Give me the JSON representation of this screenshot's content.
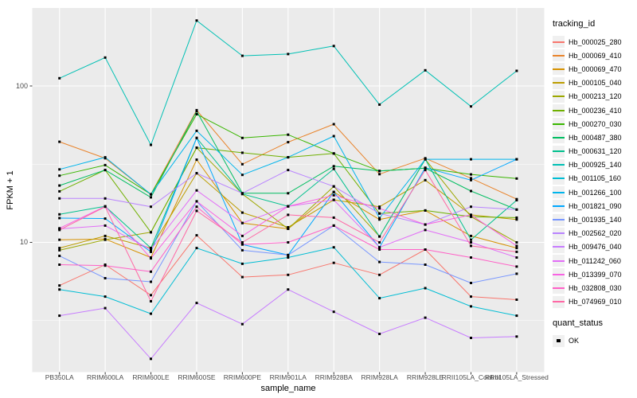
{
  "figure": {
    "y_axis": {
      "label": "FPKM + 1",
      "tick_labels": [
        "100",
        "10"
      ],
      "tick_values": [
        100,
        10
      ]
    },
    "x_axis": {
      "label": "sample_name"
    },
    "legend": {
      "tracking_title": "tracking_id",
      "quant_title": "quant_status",
      "quant_items": [
        {
          "label": "OK",
          "marker": "black-square"
        }
      ]
    },
    "colors": {
      "panel_bg": "#EBEBEB",
      "grid": "#FFFFFF",
      "axis_text": "#4D4D4D",
      "tick_mark": "#333333",
      "point": "#000000",
      "legend_key_bg": "#F0F0F0"
    }
  },
  "chart_data": {
    "type": "line",
    "title": "",
    "xlabel": "sample_name",
    "ylabel": "FPKM + 1",
    "y_scale": "log10",
    "ylim": [
      1.45,
      320
    ],
    "y_major_ticks": [
      10,
      100
    ],
    "y_minor_ticks": [
      3.162,
      31.62,
      316.2
    ],
    "grid": true,
    "legend_position": "right",
    "marker": "black-square",
    "x": [
      "PB350LA",
      "RRIM600LA",
      "RRIM600LE",
      "RRIM600SE",
      "RRIM600PE",
      "RRIM901LA",
      "RRIM928BA",
      "RRIM928LA",
      "RRIM928LE",
      "RRII105LA_Control",
      "RRII105LA_Stressed"
    ],
    "series": [
      {
        "name": "Hb_000025_280",
        "color": "#F8766D",
        "values": [
          5.3,
          7.2,
          4.6,
          11.1,
          6.0,
          6.2,
          7.4,
          6.2,
          9.0,
          4.5,
          4.3
        ]
      },
      {
        "name": "Hb_000069_410",
        "color": "#E9842C",
        "values": [
          44,
          34.5,
          20.3,
          70,
          31.6,
          43.7,
          57,
          27.3,
          34.5,
          25.7,
          18.9
        ]
      },
      {
        "name": "Hb_000069_470",
        "color": "#D69100",
        "values": [
          10.4,
          10.5,
          8.0,
          33.8,
          13.3,
          12.2,
          21.0,
          14.0,
          16.0,
          11.0,
          9.2
        ]
      },
      {
        "name": "Hb_000105_040",
        "color": "#BC9D00",
        "values": [
          9.2,
          11.0,
          9.2,
          27.7,
          15.5,
          12.5,
          18.7,
          16.9,
          25.0,
          15.0,
          14.0
        ]
      },
      {
        "name": "Hb_000213_120",
        "color": "#9CA700",
        "values": [
          8.9,
          10.4,
          11.6,
          40.3,
          20.4,
          12.2,
          22.8,
          10.9,
          34.0,
          14.6,
          10.0
        ]
      },
      {
        "name": "Hb_000236_410",
        "color": "#6FB000",
        "values": [
          21.2,
          29.0,
          11.6,
          40.3,
          37.4,
          35.0,
          37.0,
          15.3,
          16.0,
          14.6,
          14.4
        ]
      },
      {
        "name": "Hb_000270_030",
        "color": "#39B600",
        "values": [
          26.7,
          31.2,
          20.3,
          66.0,
          46.5,
          48.8,
          37.0,
          28.6,
          29.8,
          27.2,
          25.6
        ]
      },
      {
        "name": "Hb_000487_380",
        "color": "#00BD61",
        "values": [
          23.1,
          29.0,
          19.4,
          69.0,
          20.6,
          20.6,
          30.7,
          28.6,
          29.8,
          21.3,
          16.2
        ]
      },
      {
        "name": "Hb_000631_120",
        "color": "#00C08D",
        "values": [
          15.1,
          17.0,
          9.2,
          46.5,
          20.4,
          17.0,
          29.5,
          10.9,
          34.0,
          10.4,
          18.6
        ]
      },
      {
        "name": "Hb_000925_140",
        "color": "#00C0B4",
        "values": [
          112,
          152,
          42,
          262,
          156,
          160,
          180,
          76,
          126,
          74,
          125
        ]
      },
      {
        "name": "Hb_001105_160",
        "color": "#00BDD4",
        "values": [
          5.0,
          4.5,
          3.5,
          9.2,
          7.3,
          8.0,
          9.3,
          4.4,
          5.1,
          3.9,
          3.4
        ]
      },
      {
        "name": "Hb_001266_100",
        "color": "#00B5EC",
        "values": [
          29.3,
          35.0,
          20.3,
          51.7,
          27.0,
          35.0,
          47.8,
          14.3,
          34.0,
          34.0,
          34.0
        ]
      },
      {
        "name": "Hb_001821_090",
        "color": "#00A7FF",
        "values": [
          14.3,
          14.2,
          8.7,
          46.5,
          9.7,
          8.3,
          21.0,
          9.3,
          30.0,
          25.0,
          34.0
        ]
      },
      {
        "name": "Hb_001935_140",
        "color": "#7997FF",
        "values": [
          8.2,
          5.9,
          5.6,
          18.3,
          8.9,
          8.3,
          12.8,
          7.5,
          7.2,
          5.5,
          6.3
        ]
      },
      {
        "name": "Hb_002562_020",
        "color": "#B983FF",
        "values": [
          19.1,
          19.1,
          16.9,
          27.7,
          20.6,
          29.0,
          22.8,
          15.3,
          13.0,
          16.9,
          16.2
        ]
      },
      {
        "name": "Hb_009476_040",
        "color": "#C77CFF",
        "values": [
          3.4,
          3.8,
          1.8,
          4.1,
          3.0,
          5.0,
          3.6,
          2.6,
          3.3,
          2.45,
          2.5
        ]
      },
      {
        "name": "Hb_011242_060",
        "color": "#E26EF7",
        "values": [
          12.2,
          12.8,
          9.0,
          21.5,
          13.3,
          17.0,
          18.7,
          9.3,
          12.0,
          10.0,
          8.0
        ]
      },
      {
        "name": "Hb_013399_070",
        "color": "#F863E3",
        "values": [
          12.3,
          17.0,
          7.9,
          18.3,
          11.0,
          17.0,
          20.0,
          16.5,
          13.0,
          15.0,
          9.5
        ]
      },
      {
        "name": "Hb_032808_030",
        "color": "#FF61C7",
        "values": [
          7.2,
          7.1,
          6.5,
          16.9,
          9.7,
          10.0,
          12.8,
          9.0,
          9.0,
          8.0,
          7.0
        ]
      },
      {
        "name": "Hb_074969_010",
        "color": "#FF68A5",
        "values": [
          12.0,
          16.9,
          4.2,
          15.9,
          10.0,
          15.0,
          14.4,
          10.0,
          29.0,
          9.5,
          8.7
        ]
      }
    ],
    "shape_legend": {
      "title": "quant_status",
      "items": [
        "OK"
      ]
    }
  }
}
